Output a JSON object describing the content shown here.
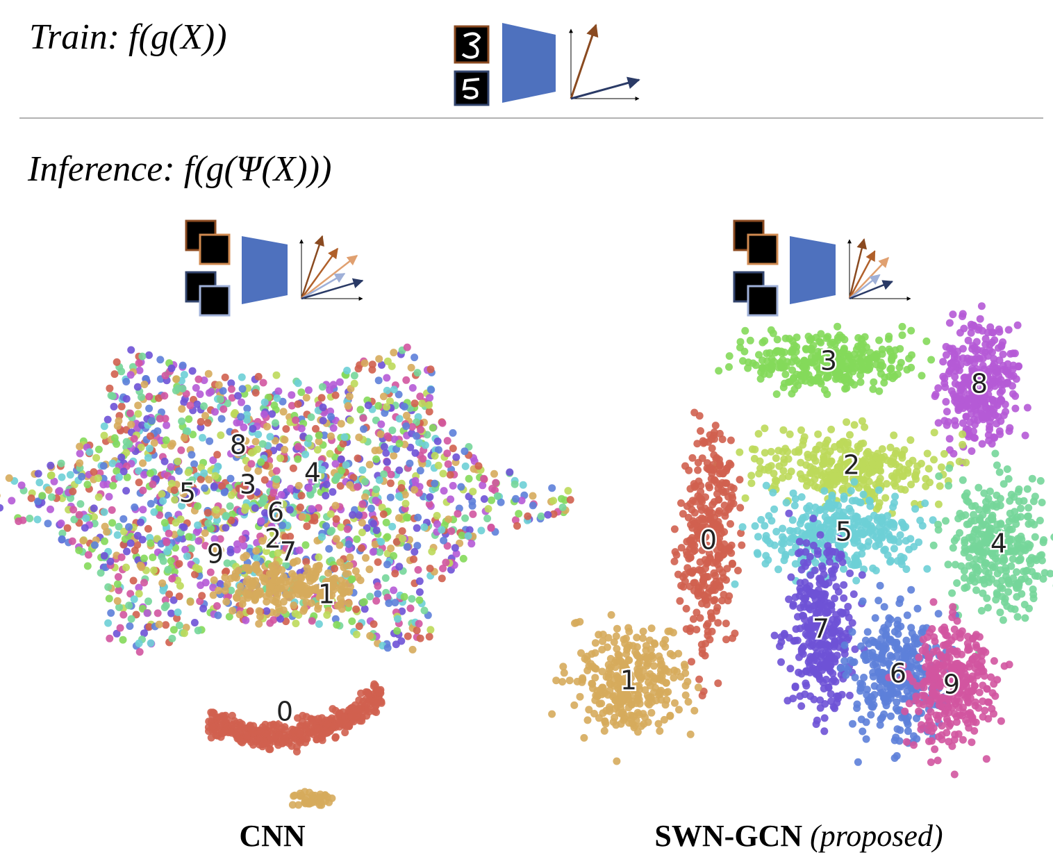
{
  "train": "Train: f(g(X))",
  "inference": "Inference: f(g(Ψ(X)))",
  "panels": [
    {
      "caption": "CNN",
      "clusters": [
        {
          "label": "8",
          "color": "#b55ad6"
        },
        {
          "label": "5",
          "color": "#6dcfd6"
        },
        {
          "label": "3",
          "color": "#84d95a"
        },
        {
          "label": "4",
          "color": "#76d69a"
        },
        {
          "label": "6",
          "color": "#5d7fd9"
        },
        {
          "label": "2",
          "color": "#bcd95a"
        },
        {
          "label": "9",
          "color": "#d155a0"
        },
        {
          "label": "7",
          "color": "#6e52d6"
        },
        {
          "label": "1",
          "color": "#d6ab5c"
        },
        {
          "label": "0",
          "color": "#d0604f"
        }
      ]
    },
    {
      "caption": "SWN-GCN",
      "note": "(proposed)",
      "clusters": [
        {
          "label": "3",
          "color": "#84d95a"
        },
        {
          "label": "8",
          "color": "#b55ad6"
        },
        {
          "label": "2",
          "color": "#bcd95a"
        },
        {
          "label": "0",
          "color": "#d0604f"
        },
        {
          "label": "5",
          "color": "#6dcfd6"
        },
        {
          "label": "4",
          "color": "#76d69a"
        },
        {
          "label": "7",
          "color": "#6e52d6"
        },
        {
          "label": "1",
          "color": "#d6ab5c"
        },
        {
          "label": "6",
          "color": "#5d7fd9"
        },
        {
          "label": "9",
          "color": "#d155a0"
        }
      ]
    }
  ]
}
